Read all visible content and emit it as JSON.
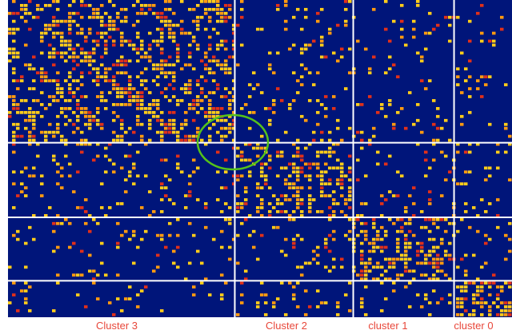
{
  "chart_data": {
    "type": "heatmap",
    "title": "",
    "xlabel": "",
    "ylabel": "",
    "grid": true,
    "clusters": [
      {
        "name": "Cluster 3",
        "order": 3
      },
      {
        "name": "Cluster 2",
        "order": 2
      },
      {
        "name": "cluster 1",
        "order": 1
      },
      {
        "name": "cluster 0",
        "order": 0
      }
    ],
    "cluster_fraction": [
      0.45,
      0.235,
      0.2,
      0.145
    ],
    "block_density": [
      [
        0.3,
        0.1,
        0.08,
        0.06
      ],
      [
        0.12,
        0.35,
        0.1,
        0.1
      ],
      [
        0.08,
        0.1,
        0.38,
        0.1
      ],
      [
        0.06,
        0.12,
        0.12,
        0.5
      ]
    ],
    "colors": {
      "background": "#00157a",
      "low": "#ffcc1a",
      "mid": "#ff9a10",
      "high": "#e0301a",
      "divider": "#ffffff",
      "highlight": "#55c21a",
      "label": "#e8473a"
    },
    "annotation": {
      "type": "ellipse",
      "note": "overlap between Cluster 3 and Cluster 2"
    }
  }
}
